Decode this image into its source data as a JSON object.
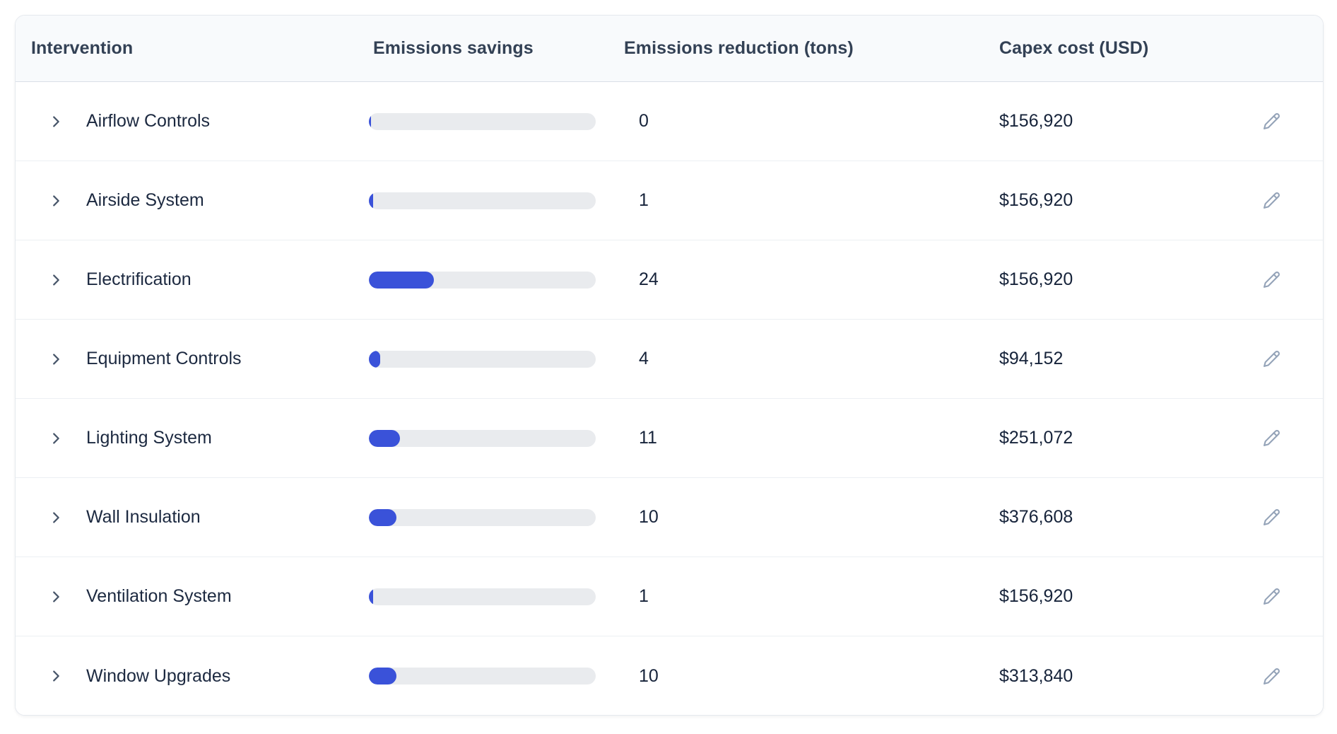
{
  "table": {
    "columns": [
      {
        "label": "Intervention"
      },
      {
        "label": "Emissions savings"
      },
      {
        "label": "Emissions reduction (tons)"
      },
      {
        "label": "Capex cost (USD)"
      }
    ],
    "rows": [
      {
        "name": "Airflow Controls",
        "reduction_tons": "0",
        "capex": "$156,920",
        "bar_pct": 1
      },
      {
        "name": "Airside System",
        "reduction_tons": "1",
        "capex": "$156,920",
        "bar_pct": 2
      },
      {
        "name": "Electrification",
        "reduction_tons": "24",
        "capex": "$156,920",
        "bar_pct": 28.7
      },
      {
        "name": "Equipment Controls",
        "reduction_tons": "4",
        "capex": "$94,152",
        "bar_pct": 5
      },
      {
        "name": "Lighting System",
        "reduction_tons": "11",
        "capex": "$251,072",
        "bar_pct": 13.7
      },
      {
        "name": "Wall Insulation",
        "reduction_tons": "10",
        "capex": "$376,608",
        "bar_pct": 12.1
      },
      {
        "name": "Ventilation System",
        "reduction_tons": "1",
        "capex": "$156,920",
        "bar_pct": 2
      },
      {
        "name": "Window Upgrades",
        "reduction_tons": "10",
        "capex": "$313,840",
        "bar_pct": 12.1
      }
    ]
  },
  "icons": {
    "row_expander": "chevron-right-icon",
    "row_editor": "pencil-icon"
  },
  "colors": {
    "bar_fill": "#3a52d9",
    "bar_track": "#e9ebee",
    "header_bg": "#f8fafc",
    "chevron": "#475569",
    "pencil": "#94a3b8"
  }
}
